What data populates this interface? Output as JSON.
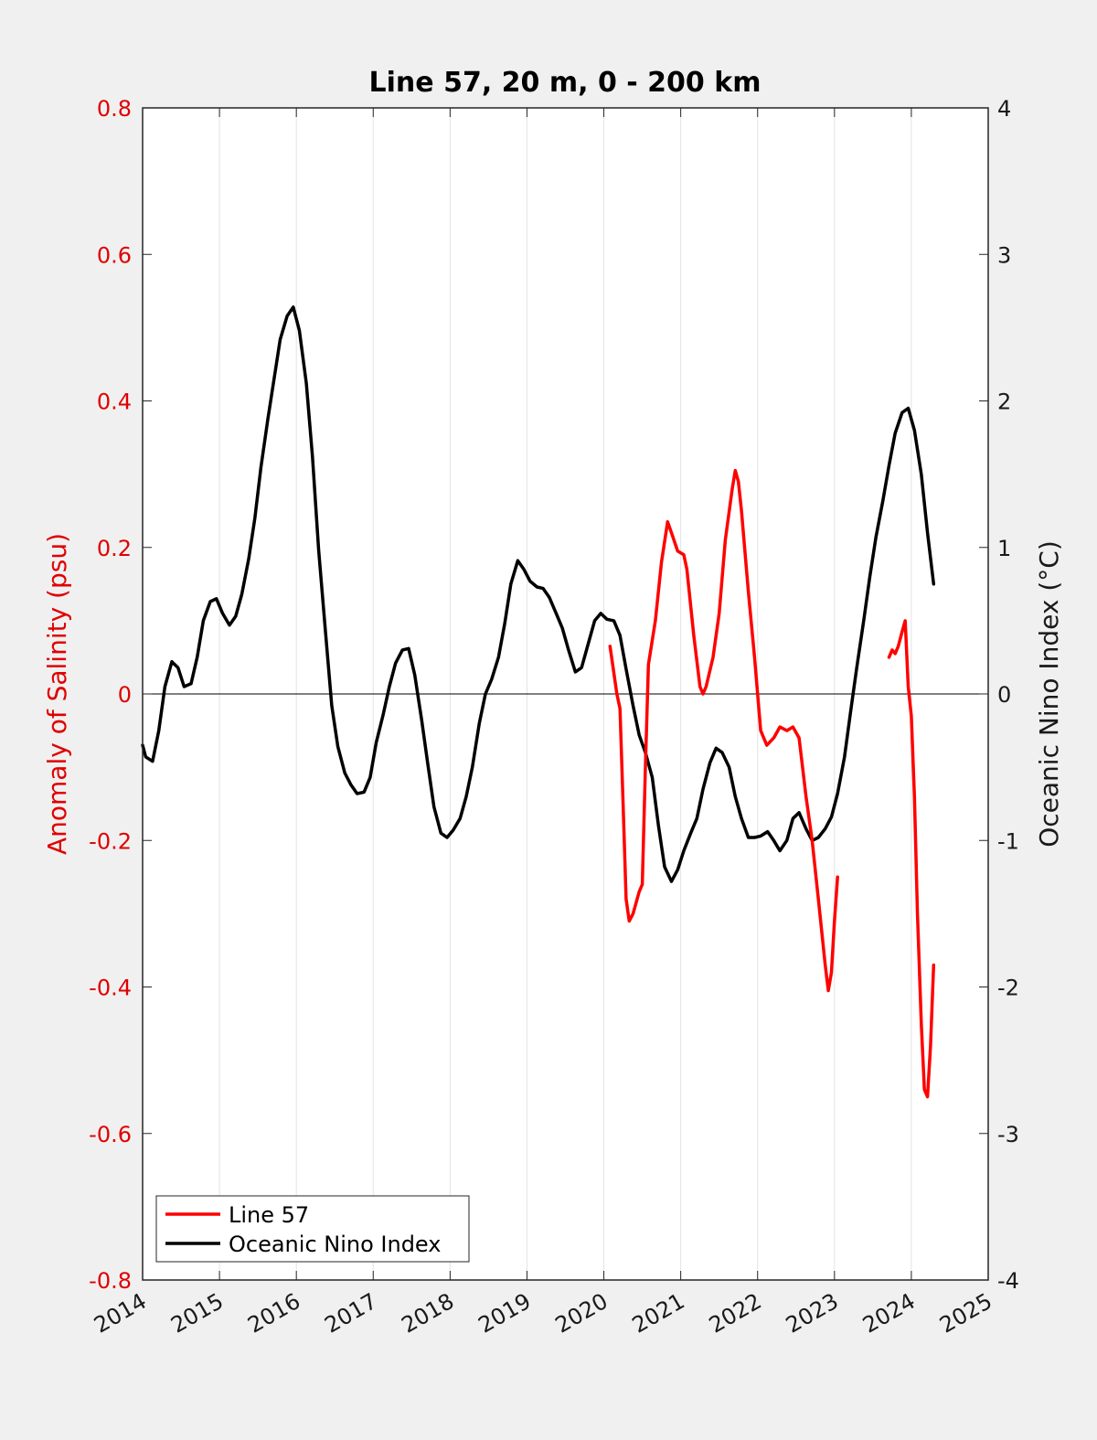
{
  "chart_data": {
    "type": "line",
    "title": "Line 57, 20 m, 0 - 200 km",
    "xlabel": "",
    "ylabel_left": "Anomaly of Salinity (psu)",
    "ylabel_right": "Oceanic Nino Index (°C)",
    "xlim": [
      2014,
      2025
    ],
    "ylim_left": [
      -0.8,
      0.8
    ],
    "ylim_right": [
      -4,
      4
    ],
    "x_ticks": [
      "2014",
      "2015",
      "2016",
      "2017",
      "2018",
      "2019",
      "2020",
      "2021",
      "2022",
      "2023",
      "2024",
      "2025"
    ],
    "y_ticks_left": [
      "-0.8",
      "-0.6",
      "-0.4",
      "-0.2",
      "0",
      "0.2",
      "0.4",
      "0.6",
      "0.8"
    ],
    "y_ticks_right": [
      "-4",
      "-3",
      "-2",
      "-1",
      "0",
      "1",
      "2",
      "3",
      "4"
    ],
    "grid": "vertical",
    "zero_line": true,
    "legend_position": "bottom-left",
    "colors": {
      "line57": "#ff0000",
      "oni": "#000000"
    },
    "series": [
      {
        "name": "Line 57",
        "axis": "left",
        "color": "#ff0000",
        "segments": [
          [
            [
              2020.08,
              0.065
            ],
            [
              2020.17,
              0.0
            ],
            [
              2020.21,
              -0.02
            ],
            [
              2020.25,
              -0.15
            ],
            [
              2020.29,
              -0.28
            ],
            [
              2020.33,
              -0.31
            ],
            [
              2020.38,
              -0.3
            ],
            [
              2020.46,
              -0.27
            ],
            [
              2020.5,
              -0.26
            ],
            [
              2020.54,
              -0.1
            ],
            [
              2020.58,
              0.04
            ],
            [
              2020.67,
              0.1
            ],
            [
              2020.75,
              0.18
            ],
            [
              2020.83,
              0.235
            ],
            [
              2020.88,
              0.22
            ],
            [
              2020.96,
              0.195
            ],
            [
              2021.04,
              0.19
            ],
            [
              2021.08,
              0.17
            ],
            [
              2021.17,
              0.08
            ],
            [
              2021.25,
              0.01
            ],
            [
              2021.29,
              0.0
            ],
            [
              2021.33,
              0.01
            ],
            [
              2021.42,
              0.05
            ],
            [
              2021.5,
              0.11
            ],
            [
              2021.58,
              0.21
            ],
            [
              2021.67,
              0.28
            ],
            [
              2021.71,
              0.305
            ],
            [
              2021.75,
              0.29
            ],
            [
              2021.79,
              0.25
            ],
            [
              2021.88,
              0.14
            ],
            [
              2021.96,
              0.05
            ],
            [
              2022.04,
              -0.05
            ],
            [
              2022.12,
              -0.07
            ],
            [
              2022.21,
              -0.06
            ],
            [
              2022.29,
              -0.045
            ],
            [
              2022.38,
              -0.05
            ],
            [
              2022.46,
              -0.045
            ],
            [
              2022.54,
              -0.06
            ],
            [
              2022.63,
              -0.14
            ],
            [
              2022.71,
              -0.2
            ],
            [
              2022.79,
              -0.28
            ],
            [
              2022.88,
              -0.37
            ],
            [
              2022.92,
              -0.405
            ],
            [
              2022.96,
              -0.38
            ],
            [
              2023.0,
              -0.31
            ],
            [
              2023.04,
              -0.25
            ]
          ],
          [
            [
              2023.71,
              0.05
            ],
            [
              2023.75,
              0.06
            ],
            [
              2023.79,
              0.055
            ],
            [
              2023.83,
              0.065
            ],
            [
              2023.88,
              0.085
            ],
            [
              2023.92,
              0.1
            ],
            [
              2023.96,
              0.01
            ],
            [
              2024.0,
              -0.03
            ],
            [
              2024.04,
              -0.14
            ],
            [
              2024.08,
              -0.3
            ],
            [
              2024.13,
              -0.45
            ],
            [
              2024.17,
              -0.54
            ],
            [
              2024.21,
              -0.55
            ],
            [
              2024.25,
              -0.48
            ],
            [
              2024.29,
              -0.37
            ]
          ]
        ]
      },
      {
        "name": "Oceanic Nino Index",
        "axis": "right",
        "color": "#000000",
        "points": [
          [
            2014.0,
            -0.35
          ],
          [
            2014.04,
            -0.43
          ],
          [
            2014.13,
            -0.46
          ],
          [
            2014.21,
            -0.25
          ],
          [
            2014.29,
            0.05
          ],
          [
            2014.38,
            0.22
          ],
          [
            2014.46,
            0.18
          ],
          [
            2014.54,
            0.05
          ],
          [
            2014.63,
            0.07
          ],
          [
            2014.71,
            0.25
          ],
          [
            2014.79,
            0.5
          ],
          [
            2014.88,
            0.63
          ],
          [
            2014.96,
            0.65
          ],
          [
            2015.04,
            0.55
          ],
          [
            2015.13,
            0.47
          ],
          [
            2015.21,
            0.53
          ],
          [
            2015.29,
            0.68
          ],
          [
            2015.38,
            0.92
          ],
          [
            2015.46,
            1.2
          ],
          [
            2015.54,
            1.55
          ],
          [
            2015.63,
            1.88
          ],
          [
            2015.71,
            2.15
          ],
          [
            2015.79,
            2.42
          ],
          [
            2015.88,
            2.58
          ],
          [
            2015.96,
            2.64
          ],
          [
            2016.04,
            2.48
          ],
          [
            2016.13,
            2.12
          ],
          [
            2016.21,
            1.62
          ],
          [
            2016.29,
            0.98
          ],
          [
            2016.38,
            0.42
          ],
          [
            2016.46,
            -0.08
          ],
          [
            2016.54,
            -0.36
          ],
          [
            2016.63,
            -0.54
          ],
          [
            2016.71,
            -0.62
          ],
          [
            2016.79,
            -0.68
          ],
          [
            2016.88,
            -0.67
          ],
          [
            2016.96,
            -0.57
          ],
          [
            2017.04,
            -0.33
          ],
          [
            2017.13,
            -0.14
          ],
          [
            2017.21,
            0.05
          ],
          [
            2017.29,
            0.21
          ],
          [
            2017.38,
            0.3
          ],
          [
            2017.46,
            0.31
          ],
          [
            2017.54,
            0.13
          ],
          [
            2017.63,
            -0.18
          ],
          [
            2017.71,
            -0.48
          ],
          [
            2017.79,
            -0.77
          ],
          [
            2017.88,
            -0.95
          ],
          [
            2017.96,
            -0.98
          ],
          [
            2018.04,
            -0.93
          ],
          [
            2018.13,
            -0.85
          ],
          [
            2018.21,
            -0.7
          ],
          [
            2018.29,
            -0.5
          ],
          [
            2018.38,
            -0.2
          ],
          [
            2018.46,
            0.0
          ],
          [
            2018.54,
            0.1
          ],
          [
            2018.63,
            0.25
          ],
          [
            2018.71,
            0.48
          ],
          [
            2018.79,
            0.75
          ],
          [
            2018.88,
            0.91
          ],
          [
            2018.96,
            0.85
          ],
          [
            2019.04,
            0.77
          ],
          [
            2019.13,
            0.73
          ],
          [
            2019.21,
            0.72
          ],
          [
            2019.29,
            0.66
          ],
          [
            2019.38,
            0.55
          ],
          [
            2019.46,
            0.45
          ],
          [
            2019.54,
            0.3
          ],
          [
            2019.63,
            0.15
          ],
          [
            2019.71,
            0.18
          ],
          [
            2019.79,
            0.33
          ],
          [
            2019.88,
            0.5
          ],
          [
            2019.96,
            0.55
          ],
          [
            2020.04,
            0.51
          ],
          [
            2020.13,
            0.5
          ],
          [
            2020.21,
            0.4
          ],
          [
            2020.29,
            0.17
          ],
          [
            2020.38,
            -0.08
          ],
          [
            2020.46,
            -0.28
          ],
          [
            2020.54,
            -0.4
          ],
          [
            2020.63,
            -0.57
          ],
          [
            2020.71,
            -0.9
          ],
          [
            2020.79,
            -1.18
          ],
          [
            2020.88,
            -1.28
          ],
          [
            2020.96,
            -1.2
          ],
          [
            2021.04,
            -1.07
          ],
          [
            2021.13,
            -0.95
          ],
          [
            2021.21,
            -0.85
          ],
          [
            2021.29,
            -0.65
          ],
          [
            2021.38,
            -0.47
          ],
          [
            2021.46,
            -0.37
          ],
          [
            2021.54,
            -0.4
          ],
          [
            2021.63,
            -0.5
          ],
          [
            2021.71,
            -0.7
          ],
          [
            2021.79,
            -0.85
          ],
          [
            2021.88,
            -0.98
          ],
          [
            2021.96,
            -0.98
          ],
          [
            2022.04,
            -0.97
          ],
          [
            2022.13,
            -0.94
          ],
          [
            2022.21,
            -1.0
          ],
          [
            2022.29,
            -1.07
          ],
          [
            2022.38,
            -1.0
          ],
          [
            2022.46,
            -0.85
          ],
          [
            2022.54,
            -0.81
          ],
          [
            2022.63,
            -0.92
          ],
          [
            2022.71,
            -1.0
          ],
          [
            2022.79,
            -0.98
          ],
          [
            2022.88,
            -0.92
          ],
          [
            2022.96,
            -0.84
          ],
          [
            2023.04,
            -0.68
          ],
          [
            2023.13,
            -0.43
          ],
          [
            2023.21,
            -0.12
          ],
          [
            2023.29,
            0.18
          ],
          [
            2023.38,
            0.5
          ],
          [
            2023.46,
            0.8
          ],
          [
            2023.54,
            1.07
          ],
          [
            2023.63,
            1.32
          ],
          [
            2023.71,
            1.56
          ],
          [
            2023.79,
            1.78
          ],
          [
            2023.88,
            1.92
          ],
          [
            2023.96,
            1.95
          ],
          [
            2024.04,
            1.8
          ],
          [
            2024.13,
            1.5
          ],
          [
            2024.21,
            1.1
          ],
          [
            2024.29,
            0.75
          ]
        ]
      }
    ]
  }
}
